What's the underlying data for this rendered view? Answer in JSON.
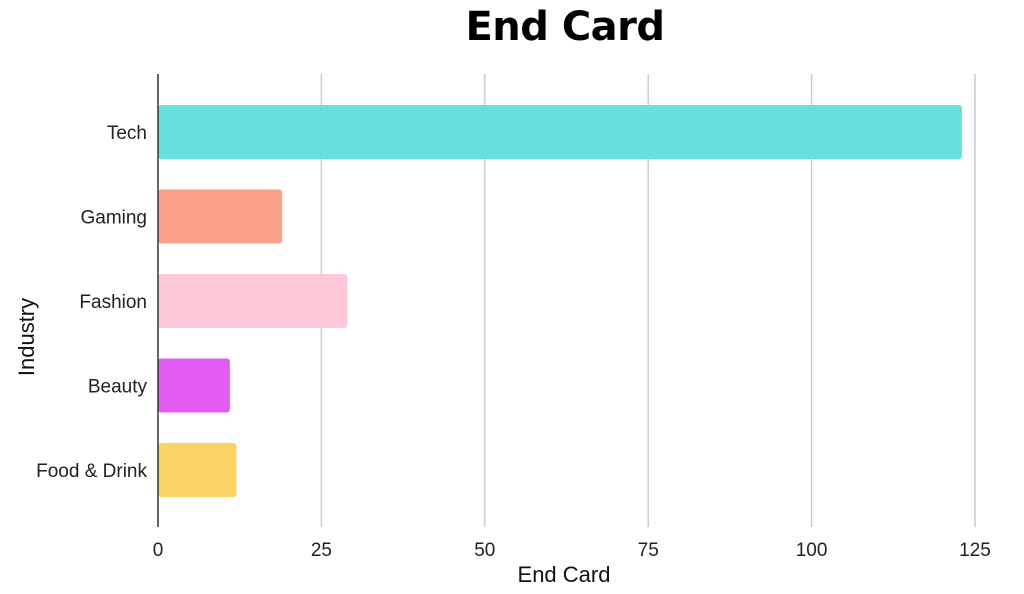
{
  "chart_data": {
    "type": "bar",
    "orientation": "horizontal",
    "title": "End Card",
    "xlabel": "End Card",
    "ylabel": "Industry",
    "categories": [
      "Tech",
      "Gaming",
      "Fashion",
      "Beauty",
      "Food & Drink"
    ],
    "values": [
      123,
      19,
      29,
      11,
      12
    ],
    "colors": [
      "#6ADFDF",
      "#FDA08A",
      "#FFC8D6",
      "#E05CF2",
      "#FAD465"
    ],
    "xlim": [
      0,
      125
    ],
    "xticks": [
      "0",
      "25",
      "50",
      "75",
      "100",
      "125"
    ],
    "grid": "vertical",
    "legend": "none"
  }
}
